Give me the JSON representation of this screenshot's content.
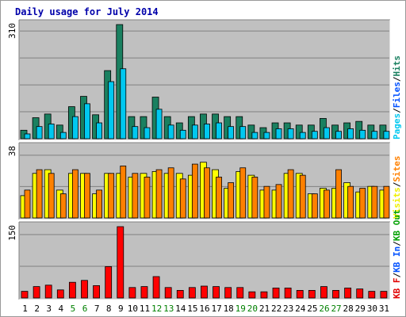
{
  "chart_data": {
    "type": "bar",
    "title": "Daily usage for July 2014",
    "days": [
      "1",
      "2",
      "3",
      "4",
      "5",
      "6",
      "7",
      "8",
      "9",
      "10",
      "11",
      "12",
      "13",
      "14",
      "15",
      "16",
      "17",
      "18",
      "19",
      "20",
      "21",
      "22",
      "23",
      "24",
      "25",
      "26",
      "27",
      "28",
      "29",
      "30",
      "31"
    ],
    "weekend_days": [
      "5",
      "6",
      "12",
      "13",
      "19",
      "20",
      "26",
      "27"
    ],
    "panels": [
      {
        "id": "pages-files-hits",
        "ylabel_max": "310",
        "ymax": 310,
        "legend": [
          {
            "text": "Pages",
            "color": "#00c8f0"
          },
          {
            "text": "/",
            "color": "#000000"
          },
          {
            "text": "Files",
            "color": "#0050ff"
          },
          {
            "text": "/",
            "color": "#000000"
          },
          {
            "text": "Hits",
            "color": "#1a8060"
          }
        ],
        "series": [
          {
            "role": "back",
            "color": "#1a8060",
            "values": [
              23,
              57,
              67,
              37,
              87,
              115,
              65,
              185,
              310,
              60,
              60,
              113,
              60,
              43,
              60,
              67,
              67,
              60,
              60,
              37,
              30,
              43,
              43,
              37,
              37,
              55,
              37,
              43,
              47,
              37,
              37
            ]
          },
          {
            "role": "front",
            "color": "#00c8f0",
            "values": [
              13,
              33,
              40,
              17,
              60,
              95,
              43,
              155,
              190,
              33,
              30,
              80,
              37,
              23,
              37,
              40,
              43,
              33,
              33,
              17,
              17,
              27,
              27,
              17,
              20,
              30,
              20,
              27,
              23,
              20,
              20
            ]
          }
        ]
      },
      {
        "id": "visits-sites",
        "ylabel_max": "38",
        "ymax": 38,
        "legend": [
          {
            "text": "Visits",
            "color": "#f0f000"
          },
          {
            "text": "/",
            "color": "#000000"
          },
          {
            "text": "Sites",
            "color": "#ff8000"
          }
        ],
        "series": [
          {
            "role": "back",
            "color": "#ffff00",
            "values": [
              12,
              24,
              26,
              15,
              24,
              24,
              13,
              24,
              24,
              22,
              24,
              25,
              24,
              24,
              23,
              30,
              26,
              16,
              25,
              23,
              15,
              15,
              24,
              24,
              13,
              16,
              16,
              19,
              14,
              17,
              15
            ]
          },
          {
            "role": "front",
            "color": "#ff8000",
            "values": [
              15,
              26,
              24,
              13,
              26,
              24,
              15,
              24,
              28,
              24,
              22,
              26,
              27,
              21,
              29,
              27,
              22,
              19,
              27,
              22,
              17,
              18,
              26,
              23,
              13,
              15,
              26,
              17,
              16,
              17,
              17
            ]
          }
        ]
      },
      {
        "id": "kb",
        "ylabel_max": "150",
        "ymax": 150,
        "legend": [
          {
            "text": "KB F",
            "color": "#e00000"
          },
          {
            "text": "/",
            "color": "#000000"
          },
          {
            "text": "KB In",
            "color": "#0050ff"
          },
          {
            "text": "/",
            "color": "#000000"
          },
          {
            "text": "KB Out",
            "color": "#00a000"
          }
        ],
        "series": [
          {
            "role": "front",
            "color": "#ff0000",
            "values": [
              14,
              24,
              27,
              17,
              33,
              37,
              26,
              66,
              150,
              22,
              24,
              45,
              22,
              16,
              22,
              25,
              24,
              22,
              22,
              13,
              13,
              21,
              21,
              16,
              16,
              24,
              16,
              21,
              19,
              14,
              14
            ]
          }
        ]
      }
    ]
  },
  "colors": {
    "frame": "#ffffff",
    "border": "#999999",
    "plot_bg": "#c0c0c0",
    "grid": "#808080",
    "title": "#0000aa",
    "weekday_label": "#000000",
    "weekend_label": "#008000"
  }
}
